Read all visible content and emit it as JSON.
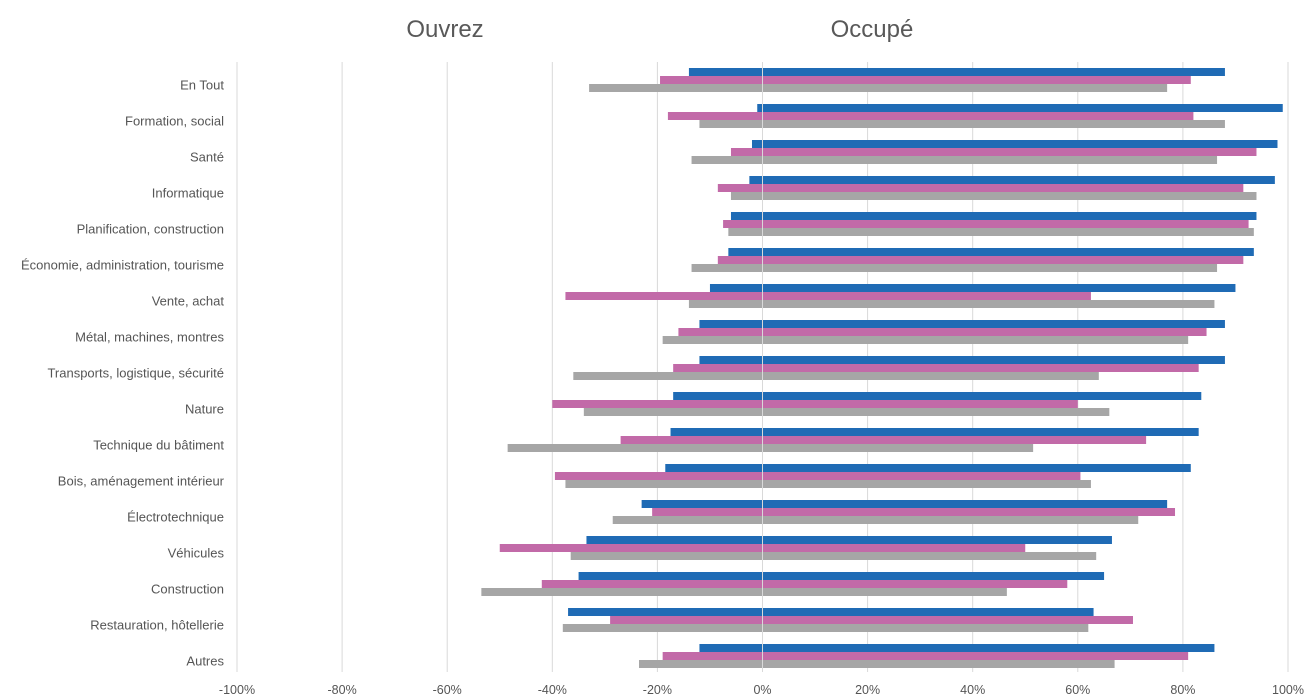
{
  "chart_data": {
    "type": "bar",
    "orientation": "horizontal",
    "headers": {
      "left": "Ouvrez",
      "right": "Occupé"
    },
    "x_ticks": [
      "-100%",
      "-80%",
      "-60%",
      "-40%",
      "-20%",
      "0%",
      "20%",
      "40%",
      "60%",
      "80%",
      "100%"
    ],
    "xlim": [
      -100,
      100
    ],
    "grid": true,
    "categories": [
      "En Tout",
      "Formation, social",
      "Santé",
      "Informatique",
      "Planification, construction",
      "Économie, administration, tourisme",
      "Vente, achat",
      "Métal, machines, montres",
      "Transports, logistique, sécurité",
      "Nature",
      "Technique du bâtiment",
      "Bois, aménagement intérieur",
      "Électrotechnique",
      "Véhicules",
      "Construction",
      "Restauration, hôtellerie",
      "Autres"
    ],
    "series": [
      {
        "color": "#1f6bb5",
        "negative": [
          -14,
          -1,
          -2,
          -2.5,
          -6,
          -6.5,
          -10,
          -12,
          -12,
          -17,
          -17.5,
          -18.5,
          -23,
          -33.5,
          -35,
          -37,
          -12
        ],
        "positive": [
          88,
          99,
          98,
          97.5,
          94,
          93.5,
          90,
          88,
          88,
          83.5,
          83,
          81.5,
          77,
          66.5,
          65,
          63,
          86
        ]
      },
      {
        "color": "#c26aa8",
        "negative": [
          -19.5,
          -18,
          -6,
          -8.5,
          -7.5,
          -8.5,
          -37.5,
          -16,
          -17,
          -40,
          -27,
          -39.5,
          -21,
          -50,
          -42,
          -29,
          -19
        ],
        "positive": [
          81.5,
          82,
          94,
          91.5,
          92.5,
          91.5,
          62.5,
          84.5,
          83,
          60,
          73,
          60.5,
          78.5,
          50,
          58,
          70.5,
          81
        ]
      },
      {
        "color": "#a6a6a6",
        "negative": [
          -33,
          -12,
          -13.5,
          -6,
          -6.5,
          -13.5,
          -14,
          -19,
          -36,
          -34,
          -48.5,
          -37.5,
          -28.5,
          -36.5,
          -53.5,
          -38,
          -23.5
        ],
        "positive": [
          77,
          88,
          86.5,
          94,
          93.5,
          86.5,
          86,
          81,
          64,
          66,
          51.5,
          62.5,
          71.5,
          63.5,
          46.5,
          62,
          67
        ]
      }
    ]
  }
}
